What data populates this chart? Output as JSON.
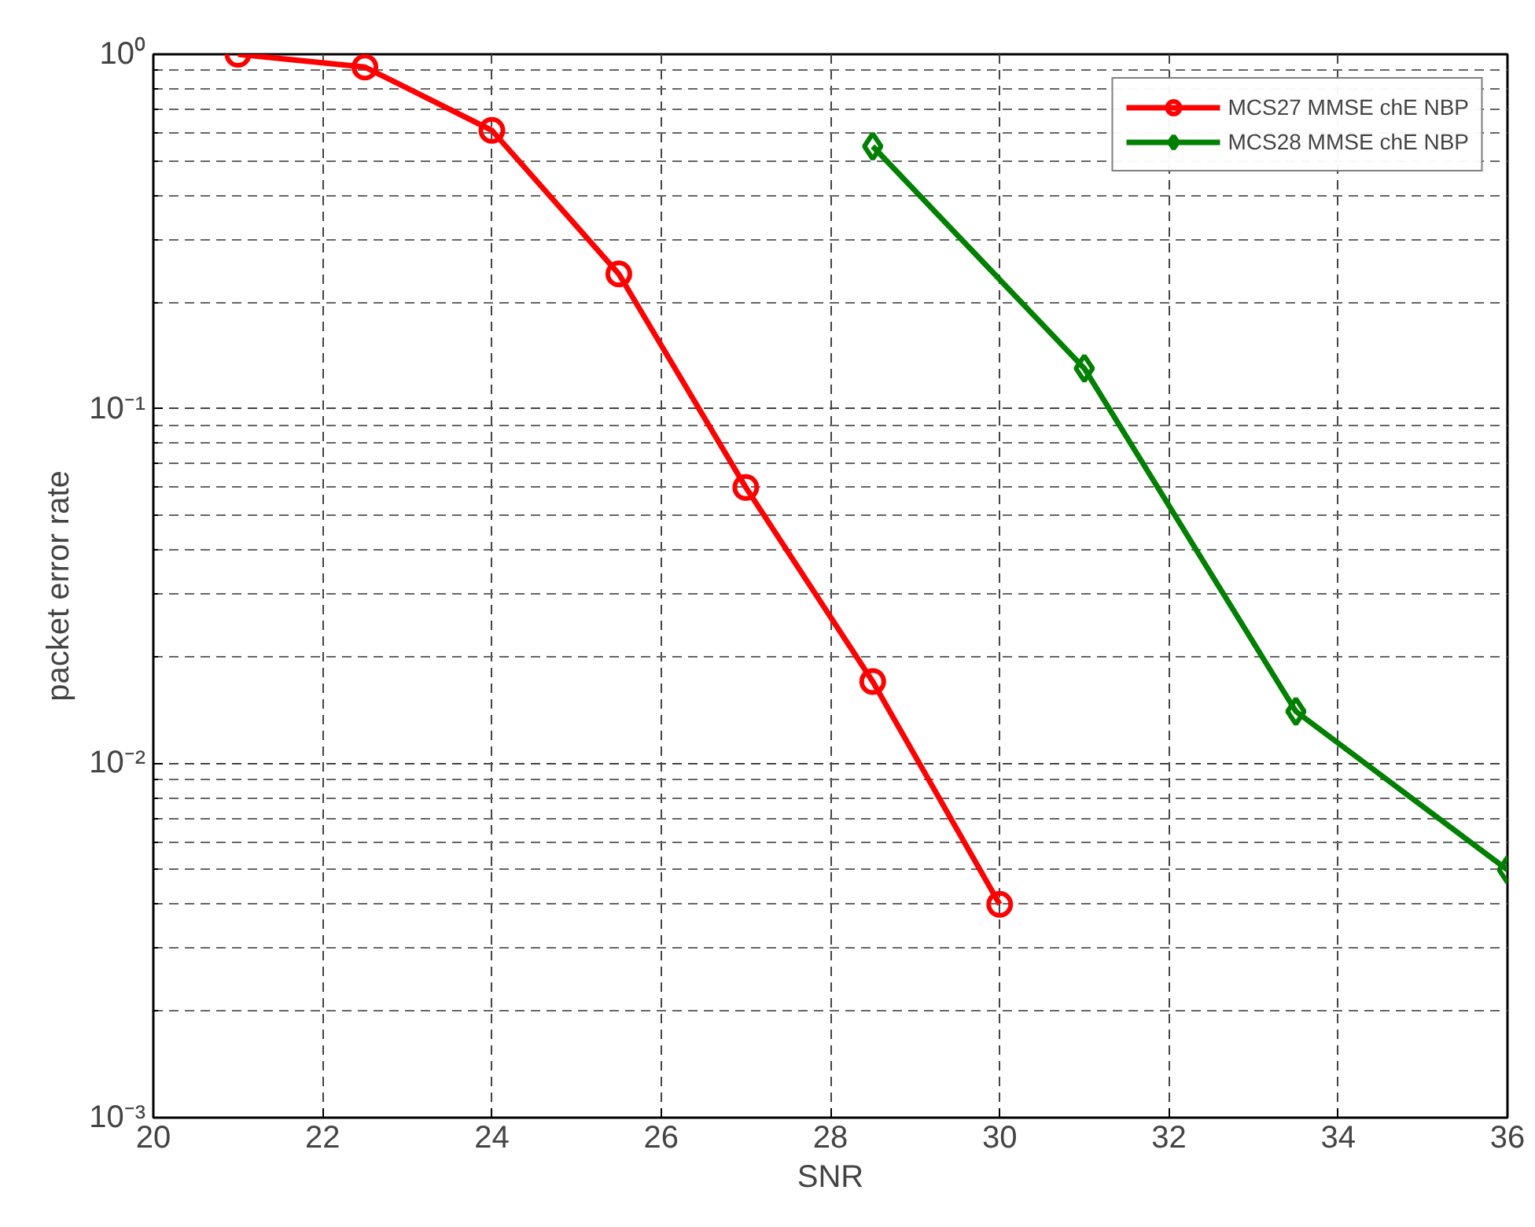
{
  "chart_data": {
    "type": "line",
    "xlabel": "SNR",
    "ylabel": "packet error rate",
    "log": "y",
    "grid": true,
    "legend": "top right",
    "line_style": "solid",
    "xlim": [
      20,
      36
    ],
    "xticks": [
      20,
      22,
      24,
      26,
      28,
      30,
      32,
      34,
      36
    ],
    "ylim": [
      0.001,
      1
    ],
    "yticks": [
      {
        "value": 0.001,
        "label": "10⁻³"
      },
      {
        "value": 0.01,
        "label": "10⁻²"
      },
      {
        "value": 0.1,
        "label": "10⁻¹"
      },
      {
        "value": 1,
        "label": "10⁰"
      }
    ],
    "series": [
      {
        "name": "MCS27 MMSE chE NBP",
        "color": "#ff0000",
        "marker": "circle",
        "x": [
          21,
          22.5,
          24,
          25.5,
          27,
          28.5,
          30
        ],
        "values": [
          1.0,
          0.92,
          0.61,
          0.24,
          0.06,
          0.017,
          0.004
        ]
      },
      {
        "name": "MCS28 MMSE chE NBP",
        "color": "#008000",
        "marker": "diamond",
        "x": [
          28.5,
          31,
          33.5,
          36
        ],
        "values": [
          0.55,
          0.13,
          0.014,
          0.005
        ]
      }
    ]
  }
}
